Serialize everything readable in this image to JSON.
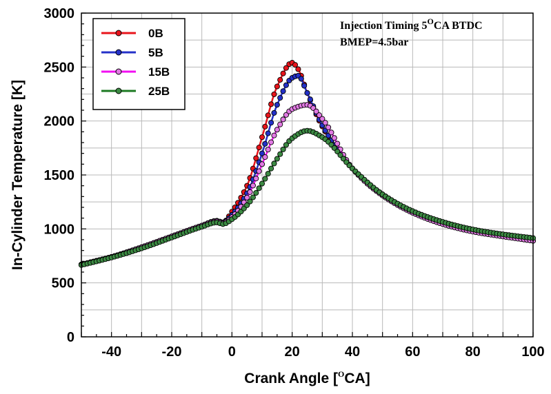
{
  "chart_data": {
    "type": "line",
    "xlabel": "Crank Angle [",
    "xlabel_sup": "O",
    "xlabel_suffix": "CA]",
    "ylabel": "In-Cylinder Temperature [K]",
    "xlim": [
      -50,
      100
    ],
    "ylim": [
      0,
      3000
    ],
    "xticks": [
      -40,
      -20,
      0,
      20,
      40,
      60,
      80,
      100
    ],
    "yticks": [
      0,
      500,
      1000,
      1500,
      2000,
      2500,
      3000
    ],
    "grid": true,
    "legend_position": "top-left",
    "annotations": {
      "line1_a": "Injection Timing 5",
      "line1_sup": "O",
      "line1_b": "CA BTDC",
      "line2": "BMEP=4.5bar"
    },
    "series": [
      {
        "name": "0B",
        "color": "#e8141b",
        "marker_fill": "#e8141b",
        "x": [
          -50,
          -40,
          -30,
          -20,
          -10,
          -5,
          -3,
          0,
          5,
          10,
          15,
          20,
          22,
          25,
          30,
          40,
          50,
          60,
          70,
          80,
          90,
          100
        ],
        "y": [
          670,
          740,
          830,
          930,
          1030,
          1075,
          1060,
          1160,
          1400,
          1850,
          2320,
          2540,
          2480,
          2260,
          1950,
          1560,
          1320,
          1160,
          1050,
          980,
          935,
          890
        ]
      },
      {
        "name": "5B",
        "color": "#2431c9",
        "marker_fill": "#2431c9",
        "x": [
          -50,
          -40,
          -30,
          -20,
          -10,
          -5,
          -3,
          0,
          5,
          10,
          15,
          20,
          22,
          25,
          30,
          40,
          50,
          60,
          70,
          80,
          90,
          100
        ],
        "y": [
          670,
          740,
          830,
          930,
          1030,
          1075,
          1060,
          1130,
          1330,
          1700,
          2150,
          2400,
          2420,
          2260,
          1960,
          1560,
          1320,
          1160,
          1050,
          980,
          935,
          890
        ]
      },
      {
        "name": "15B",
        "color": "#f20ef2",
        "marker_fill": "#e27ae4",
        "x": [
          -50,
          -40,
          -30,
          -20,
          -10,
          -5,
          -3,
          0,
          5,
          10,
          15,
          20,
          25,
          30,
          40,
          50,
          60,
          70,
          80,
          90,
          100
        ],
        "y": [
          670,
          740,
          830,
          930,
          1030,
          1070,
          1055,
          1110,
          1290,
          1600,
          1920,
          2110,
          2150,
          2020,
          1560,
          1310,
          1150,
          1045,
          975,
          930,
          890
        ]
      },
      {
        "name": "25B",
        "color": "#1c7a22",
        "marker_fill": "#3c8a43",
        "x": [
          -50,
          -40,
          -30,
          -20,
          -10,
          -5,
          -3,
          0,
          5,
          10,
          15,
          20,
          25,
          30,
          40,
          50,
          60,
          70,
          80,
          90,
          100
        ],
        "y": [
          665,
          735,
          820,
          920,
          1020,
          1060,
          1045,
          1090,
          1220,
          1420,
          1650,
          1840,
          1910,
          1850,
          1560,
          1320,
          1165,
          1065,
          995,
          950,
          915
        ]
      }
    ]
  }
}
